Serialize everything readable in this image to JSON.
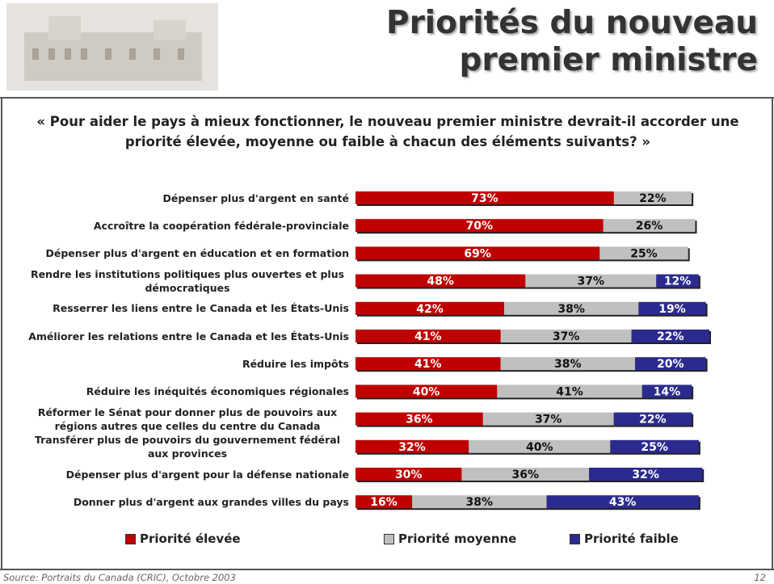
{
  "chart_data": {
    "type": "stacked-bar-horizontal",
    "title": "Priorités du nouveau premier ministre",
    "question": "« Pour aider le pays à mieux fonctionner, le nouveau premier ministre devrait-il accorder une priorité élevée, moyenne ou faible à chacun des éléments suivants? »",
    "categories": [
      "Dépenser plus d'argent en santé",
      "Accroître la coopération fédérale-provinciale",
      "Dépenser plus d'argent en éducation et en formation",
      "Rendre les institutions politiques plus ouvertes et plus démocratiques",
      "Resserrer les liens entre le Canada et les États-Unis",
      "Améliorer les relations entre le Canada et les États-Unis",
      "Réduire les impôts",
      "Réduire les inéquités économiques régionales",
      "Réformer le Sénat pour donner plus de pouvoirs aux régions autres que celles du centre du Canada",
      "Transférer plus de pouvoirs du gouvernement fédéral aux provinces",
      "Dépenser plus d'argent pour la défense nationale",
      "Donner plus d'argent aux grandes villes du pays"
    ],
    "series": [
      {
        "name": "Priorité élevée",
        "color": "#c00000",
        "values": [
          73,
          70,
          69,
          48,
          42,
          41,
          41,
          40,
          36,
          32,
          30,
          16
        ],
        "value_labels": [
          "73%",
          "70%",
          "69%",
          "48%",
          "42%",
          "41%",
          "41%",
          "40%",
          "36%",
          "32%",
          "30%",
          "16%"
        ]
      },
      {
        "name": "Priorité moyenne",
        "color": "#c0c0c0",
        "values": [
          22,
          26,
          25,
          37,
          38,
          37,
          38,
          41,
          37,
          40,
          36,
          38
        ],
        "value_labels": [
          "22%",
          "26%",
          "25%",
          "37%",
          "38%",
          "37%",
          "38%",
          "41%",
          "37%",
          "40%",
          "36%",
          "38%"
        ]
      },
      {
        "name": "Priorité faible",
        "color": "#2b2b8f",
        "values": [
          null,
          null,
          null,
          12,
          19,
          22,
          20,
          14,
          22,
          25,
          32,
          43
        ],
        "value_labels": [
          null,
          null,
          null,
          "12%",
          "19%",
          "22%",
          "20%",
          "14%",
          "22%",
          "25%",
          "32%",
          "43%"
        ]
      }
    ],
    "source": "Source: Portraits du Canada (CRIC), Octobre 2003",
    "page_number": "12"
  }
}
